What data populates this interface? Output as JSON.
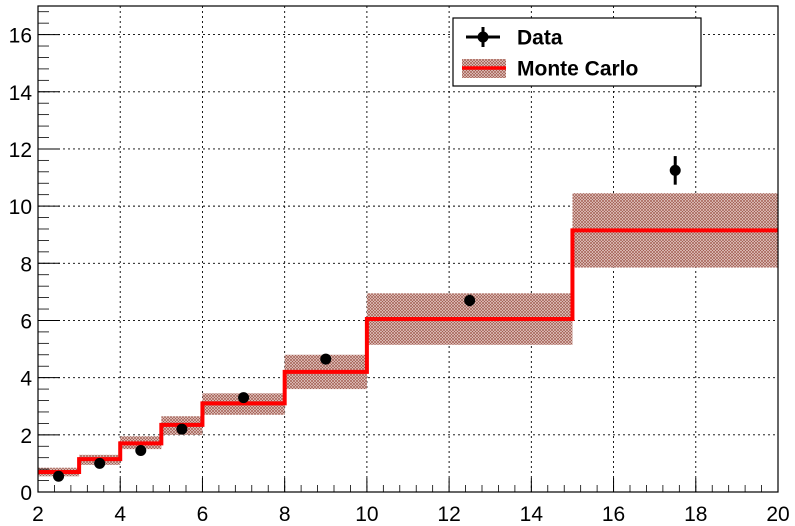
{
  "chart_data": {
    "type": "step",
    "title": "",
    "xlabel": "",
    "ylabel": "",
    "xlim": [
      2,
      20
    ],
    "ylim": [
      0,
      17
    ],
    "grid": true,
    "legend_position": "top-right",
    "x_ticks": [
      2,
      4,
      6,
      8,
      10,
      12,
      14,
      16,
      18,
      20
    ],
    "y_ticks": [
      0,
      2,
      4,
      6,
      8,
      10,
      12,
      14,
      16
    ],
    "series": [
      {
        "name": "Data",
        "kind": "points",
        "color": "#000000",
        "points": [
          {
            "x": 2.5,
            "y": 0.55,
            "err": 0.1
          },
          {
            "x": 3.5,
            "y": 1.0,
            "err": 0.1
          },
          {
            "x": 4.5,
            "y": 1.45,
            "err": 0.12
          },
          {
            "x": 5.5,
            "y": 2.2,
            "err": 0.15
          },
          {
            "x": 7.0,
            "y": 3.3,
            "err": 0.15
          },
          {
            "x": 9.0,
            "y": 4.65,
            "err": 0.18
          },
          {
            "x": 12.5,
            "y": 6.7,
            "err": 0.2
          },
          {
            "x": 17.5,
            "y": 11.25,
            "err": 0.5
          }
        ]
      },
      {
        "name": "Monte Carlo",
        "kind": "histogram",
        "color": "#ff0000",
        "band_color": "#a05a4e",
        "bins": [
          {
            "x0": 2,
            "x1": 3,
            "y": 0.7,
            "lo": 0.55,
            "hi": 0.85
          },
          {
            "x0": 3,
            "x1": 4,
            "y": 1.15,
            "lo": 0.95,
            "hi": 1.3
          },
          {
            "x0": 4,
            "x1": 5,
            "y": 1.7,
            "lo": 1.5,
            "hi": 1.95
          },
          {
            "x0": 5,
            "x1": 6,
            "y": 2.35,
            "lo": 2.0,
            "hi": 2.65
          },
          {
            "x0": 6,
            "x1": 8,
            "y": 3.1,
            "lo": 2.7,
            "hi": 3.45
          },
          {
            "x0": 8,
            "x1": 10,
            "y": 4.2,
            "lo": 3.6,
            "hi": 4.8
          },
          {
            "x0": 10,
            "x1": 15,
            "y": 6.05,
            "lo": 5.15,
            "hi": 6.95
          },
          {
            "x0": 15,
            "x1": 20,
            "y": 9.15,
            "lo": 7.85,
            "hi": 10.45
          }
        ]
      }
    ]
  },
  "legend": {
    "items": [
      {
        "label": "Data"
      },
      {
        "label": "Monte Carlo"
      }
    ]
  }
}
